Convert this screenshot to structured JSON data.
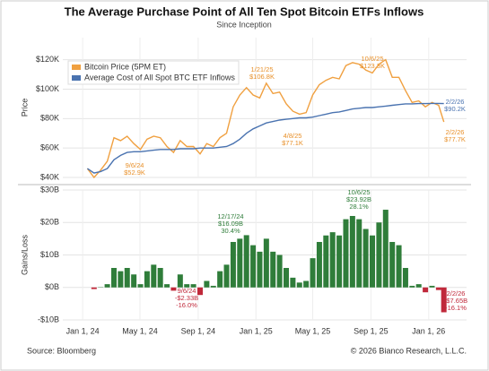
{
  "chart_data": [
    {
      "type": "line",
      "title": "The Average Purchase Point of All Ten Spot Bitcoin ETFs Inflows",
      "subtitle": "Since Inception",
      "y_label": "Price",
      "x": [
        "2024-01-11",
        "2024-01-25",
        "2024-02-08",
        "2024-02-22",
        "2024-03-07",
        "2024-03-21",
        "2024-04-04",
        "2024-04-18",
        "2024-05-02",
        "2024-05-16",
        "2024-05-30",
        "2024-06-13",
        "2024-06-27",
        "2024-07-11",
        "2024-07-25",
        "2024-08-08",
        "2024-08-22",
        "2024-09-05",
        "2024-09-19",
        "2024-10-03",
        "2024-10-17",
        "2024-10-31",
        "2024-11-14",
        "2024-11-28",
        "2024-12-12",
        "2024-12-26",
        "2025-01-09",
        "2025-01-23",
        "2025-02-06",
        "2025-02-20",
        "2025-03-06",
        "2025-03-20",
        "2025-04-03",
        "2025-04-17",
        "2025-05-01",
        "2025-05-15",
        "2025-05-29",
        "2025-06-12",
        "2025-06-26",
        "2025-07-10",
        "2025-07-24",
        "2025-08-07",
        "2025-08-21",
        "2025-09-04",
        "2025-09-18",
        "2025-10-02",
        "2025-10-16",
        "2025-10-30",
        "2025-11-13",
        "2025-11-27",
        "2025-12-11",
        "2025-12-25",
        "2026-01-08",
        "2026-01-22",
        "2026-02-02"
      ],
      "series": [
        {
          "name": "Bitcoin Price (5PM ET)",
          "color": "#f0a040",
          "values": [
            46000,
            40000,
            45000,
            51000,
            67000,
            65000,
            68000,
            63000,
            59000,
            66000,
            68000,
            67000,
            61000,
            57000,
            65000,
            61000,
            61000,
            56000,
            63000,
            61000,
            67000,
            70000,
            88000,
            96000,
            101000,
            96000,
            94000,
            104000,
            97000,
            98000,
            90000,
            85000,
            83000,
            84000,
            96000,
            103000,
            106000,
            108000,
            107000,
            116000,
            118000,
            117000,
            113000,
            111000,
            117000,
            120000,
            108000,
            108000,
            99000,
            91000,
            92000,
            88000,
            91000,
            89000,
            77700
          ]
        },
        {
          "name": "Average Cost of All Spot BTC ETF Inflows",
          "color": "#4a73b0",
          "values": [
            46000,
            43000,
            44000,
            46000,
            52000,
            55000,
            57000,
            57500,
            57500,
            58000,
            58500,
            59000,
            59000,
            59000,
            59500,
            59500,
            59500,
            60000,
            60000,
            60000,
            60500,
            61000,
            63000,
            66000,
            70000,
            73000,
            75000,
            77000,
            78000,
            79000,
            79500,
            80000,
            80500,
            80500,
            81000,
            82000,
            83000,
            84000,
            84500,
            85500,
            86500,
            87000,
            87500,
            87500,
            88000,
            88500,
            89000,
            89500,
            90000,
            90000,
            90200,
            90200,
            90300,
            90300,
            90200
          ]
        }
      ],
      "xlim": [
        "2023-11-20",
        "2026-03-22"
      ],
      "ylim": [
        40000,
        135000
      ],
      "yticks": [
        {
          "value": 40000,
          "label": "$40K"
        },
        {
          "value": 60000,
          "label": "$60K"
        },
        {
          "value": 80000,
          "label": "$80K"
        },
        {
          "value": 100000,
          "label": "$100K"
        },
        {
          "value": 120000,
          "label": "$120K"
        }
      ],
      "grid": true,
      "legend": "top-left",
      "annotations": [
        {
          "lines": [
            "1/21/25",
            "$106.8K"
          ],
          "color": "#e8902a"
        },
        {
          "lines": [
            "10/6/25",
            "$123.3K"
          ],
          "color": "#e8902a"
        },
        {
          "lines": [
            "4/8/25",
            "$77.1K"
          ],
          "color": "#e8902a"
        },
        {
          "lines": [
            "9/6/24",
            "$52.9K"
          ],
          "color": "#e8902a"
        },
        {
          "lines": [
            "2/2/26",
            "$90.2K"
          ],
          "color": "#4a73b0"
        },
        {
          "lines": [
            "2/2/26",
            "$77.7K"
          ],
          "color": "#e8902a"
        }
      ]
    },
    {
      "type": "bar",
      "y_label": "Gains/Loss",
      "x": [
        "2024-01-11",
        "2024-01-25",
        "2024-02-08",
        "2024-02-22",
        "2024-03-07",
        "2024-03-21",
        "2024-04-04",
        "2024-04-18",
        "2024-05-02",
        "2024-05-16",
        "2024-05-30",
        "2024-06-13",
        "2024-06-27",
        "2024-07-11",
        "2024-07-25",
        "2024-08-08",
        "2024-08-22",
        "2024-09-05",
        "2024-09-19",
        "2024-10-03",
        "2024-10-17",
        "2024-10-31",
        "2024-11-14",
        "2024-11-28",
        "2024-12-12",
        "2024-12-26",
        "2025-01-09",
        "2025-01-23",
        "2025-02-06",
        "2025-02-20",
        "2025-03-06",
        "2025-03-20",
        "2025-04-03",
        "2025-04-17",
        "2025-05-01",
        "2025-05-15",
        "2025-05-29",
        "2025-06-12",
        "2025-06-26",
        "2025-07-10",
        "2025-07-24",
        "2025-08-07",
        "2025-08-21",
        "2025-09-04",
        "2025-09-18",
        "2025-10-02",
        "2025-10-16",
        "2025-10-30",
        "2025-11-13",
        "2025-11-27",
        "2025-12-11",
        "2025-12-25",
        "2026-01-08",
        "2026-01-22",
        "2026-02-02"
      ],
      "values": [
        0,
        -500000000,
        100000000,
        1000000000,
        6000000000,
        5000000000,
        6000000000,
        4000000000,
        1000000000,
        5000000000,
        7000000000,
        6000000000,
        1000000000,
        -1000000000,
        4000000000,
        1000000000,
        1000000000,
        -2330000000,
        2000000000,
        500000000,
        5000000000,
        7000000000,
        14000000000,
        15000000000,
        16090000000,
        13000000000,
        11000000000,
        15000000000,
        11000000000,
        10000000000,
        6000000000,
        3000000000,
        1500000000,
        2000000000,
        9000000000,
        14000000000,
        16000000000,
        17000000000,
        16000000000,
        21000000000,
        22000000000,
        21000000000,
        18000000000,
        16000000000,
        20000000000,
        23920000000,
        14000000000,
        13000000000,
        6000000000,
        500000000,
        1000000000,
        -1500000000,
        500000000,
        -800000000,
        -7650000000
      ],
      "colors": {
        "positive": "#2f7d3a",
        "negative": "#c0283a"
      },
      "xlim": [
        "2023-11-20",
        "2026-03-22"
      ],
      "xticks": [
        {
          "value": "2024-01-01",
          "label": "Jan 1, 24"
        },
        {
          "value": "2024-05-01",
          "label": "May 1, 24"
        },
        {
          "value": "2024-09-01",
          "label": "Sep 1, 24"
        },
        {
          "value": "2025-01-01",
          "label": "Jan 1, 25"
        },
        {
          "value": "2025-05-01",
          "label": "May 1, 25"
        },
        {
          "value": "2025-09-01",
          "label": "Sep 1, 25"
        },
        {
          "value": "2026-01-01",
          "label": "Jan 1, 26"
        }
      ],
      "ylim": [
        -10000000000,
        30000000000
      ],
      "yticks": [
        {
          "value": -10000000000,
          "label": "-$10B"
        },
        {
          "value": 0,
          "label": "$0B"
        },
        {
          "value": 10000000000,
          "label": "$10B"
        },
        {
          "value": 20000000000,
          "label": "$20B"
        },
        {
          "value": 30000000000,
          "label": "$30B"
        }
      ],
      "grid": true,
      "annotations": [
        {
          "lines": [
            "12/17/24",
            "$16.09B",
            "30.4%"
          ],
          "color": "#2f7d3a"
        },
        {
          "lines": [
            "10/6/25",
            "$23.92B",
            "28.1%"
          ],
          "color": "#2f7d3a"
        },
        {
          "lines": [
            "9/6/24",
            "-$2.33B",
            "-16.0%"
          ],
          "color": "#c0283a"
        },
        {
          "lines": [
            "2/2/26",
            "-$7.65B",
            "-16.1%"
          ],
          "color": "#c0283a"
        }
      ]
    }
  ],
  "footer": {
    "source": "Source: Bloomberg",
    "copyright": "© 2026 Bianco Research, L.L.C."
  }
}
